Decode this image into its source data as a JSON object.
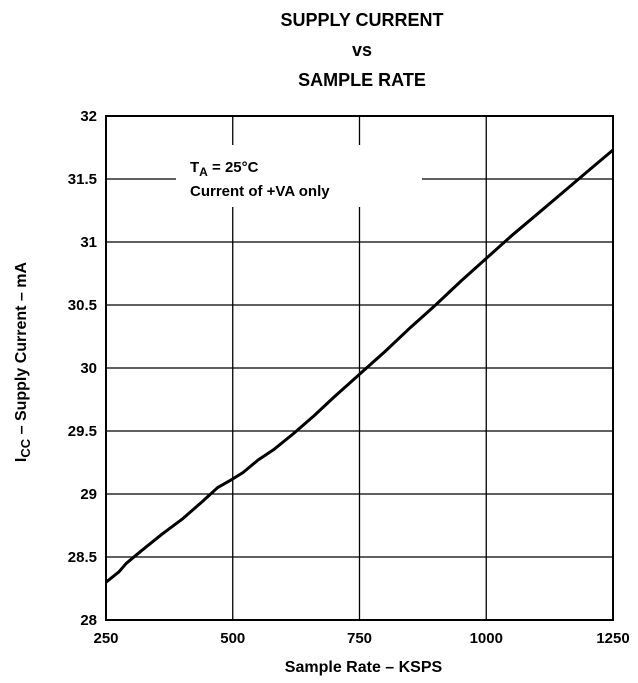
{
  "chart_data": {
    "type": "line",
    "title_lines": [
      "SUPPLY CURRENT",
      "vs",
      "SAMPLE RATE"
    ],
    "xlabel": "Sample Rate – KSPS",
    "ylabel_main": "I",
    "ylabel_sub": "CC",
    "ylabel_rest": " – Supply Current – mA",
    "xlim": [
      250,
      1250
    ],
    "ylim": [
      28,
      32
    ],
    "x_ticks": [
      250,
      500,
      750,
      1000,
      1250
    ],
    "x_tick_labels": [
      "250",
      "500",
      "750",
      "1000",
      "1250"
    ],
    "y_ticks": [
      28,
      28.5,
      29,
      29.5,
      30,
      30.5,
      31,
      31.5,
      32
    ],
    "y_tick_labels": [
      "28",
      "28.5",
      "29",
      "29.5",
      "30",
      "30.5",
      "31",
      "31.5",
      "32"
    ],
    "grid": true,
    "annotation": {
      "line1_main": "T",
      "line1_sub": "A",
      "line1_rest": " = 25°C",
      "line2": "Current of +VA only"
    },
    "series": [
      {
        "x": [
          250,
          275,
          290,
          320,
          360,
          400,
          440,
          470,
          500,
          520,
          550,
          580,
          620,
          660,
          700,
          750,
          800,
          850,
          900,
          950,
          1000,
          1050,
          1100,
          1150,
          1200,
          1250
        ],
        "y": [
          28.3,
          28.38,
          28.45,
          28.55,
          28.68,
          28.8,
          28.94,
          29.05,
          29.12,
          29.17,
          29.27,
          29.35,
          29.48,
          29.62,
          29.77,
          29.95,
          30.13,
          30.32,
          30.5,
          30.69,
          30.87,
          31.05,
          31.22,
          31.39,
          31.56,
          31.73
        ]
      }
    ]
  }
}
